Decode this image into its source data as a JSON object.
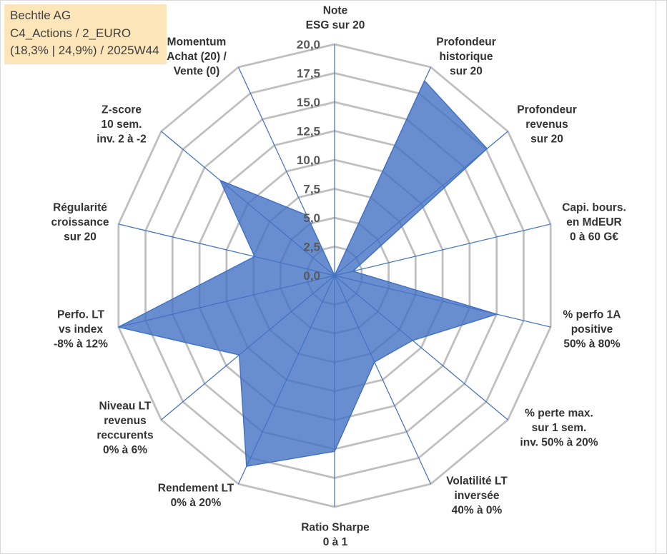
{
  "chart_data": {
    "type": "radar",
    "title": "Bechtle AG",
    "subtitle": [
      "C4_Actions / 2_EURO",
      "(18,3% | 24,9%) / 2025W44"
    ],
    "categories": [
      [
        "Note",
        "ESG sur 20"
      ],
      [
        "Profondeur",
        "historique",
        "sur 20"
      ],
      [
        "Profondeur",
        "revenus",
        "sur 20"
      ],
      [
        "Capi. bours.",
        "en MdEUR",
        "0 à 60 G€"
      ],
      [
        "% perfo 1A",
        "positive",
        "50% à 80%"
      ],
      [
        "% perte max.",
        "sur 1 sem.",
        "inv. 50% à 20%"
      ],
      [
        "Volatilité LT",
        "inversée",
        "40% à 0%"
      ],
      [
        "Ratio Sharpe",
        "0 à 1"
      ],
      [
        "Rendement LT",
        "0% à 20%"
      ],
      [
        "Niveau LT",
        "revenus",
        "reccurents",
        "0% à 6%"
      ],
      [
        "Perfo. LT",
        "vs index",
        "-8% à 12%"
      ],
      [
        "Régularité",
        "croissance",
        "sur 20"
      ],
      [
        "Z-score",
        "10 sem.",
        "inv. 2 à -2"
      ],
      [
        "Momentum",
        "Achat (20) /",
        "Vente (0)"
      ]
    ],
    "values": [
      0,
      18.7,
      17.6,
      1.7,
      15.0,
      9.0,
      8.3,
      15.2,
      18.3,
      11.0,
      20.0,
      7.4,
      13.2,
      5.8
    ],
    "rlim": [
      0,
      20
    ],
    "r_ticks": [
      0,
      2.5,
      5,
      7.5,
      10,
      12.5,
      15,
      17.5,
      20
    ],
    "r_tick_labels": [
      "0,0",
      "2,5",
      "5,0",
      "7,5",
      "10,0",
      "12,5",
      "15,0",
      "17,5",
      "20,0"
    ],
    "grid": true,
    "legend": false,
    "filled": true,
    "colors": {
      "series": "#4472C4",
      "spokes": "#4472C4",
      "grid": "#BFBFBF",
      "title_box": "#FCE6B9"
    }
  }
}
